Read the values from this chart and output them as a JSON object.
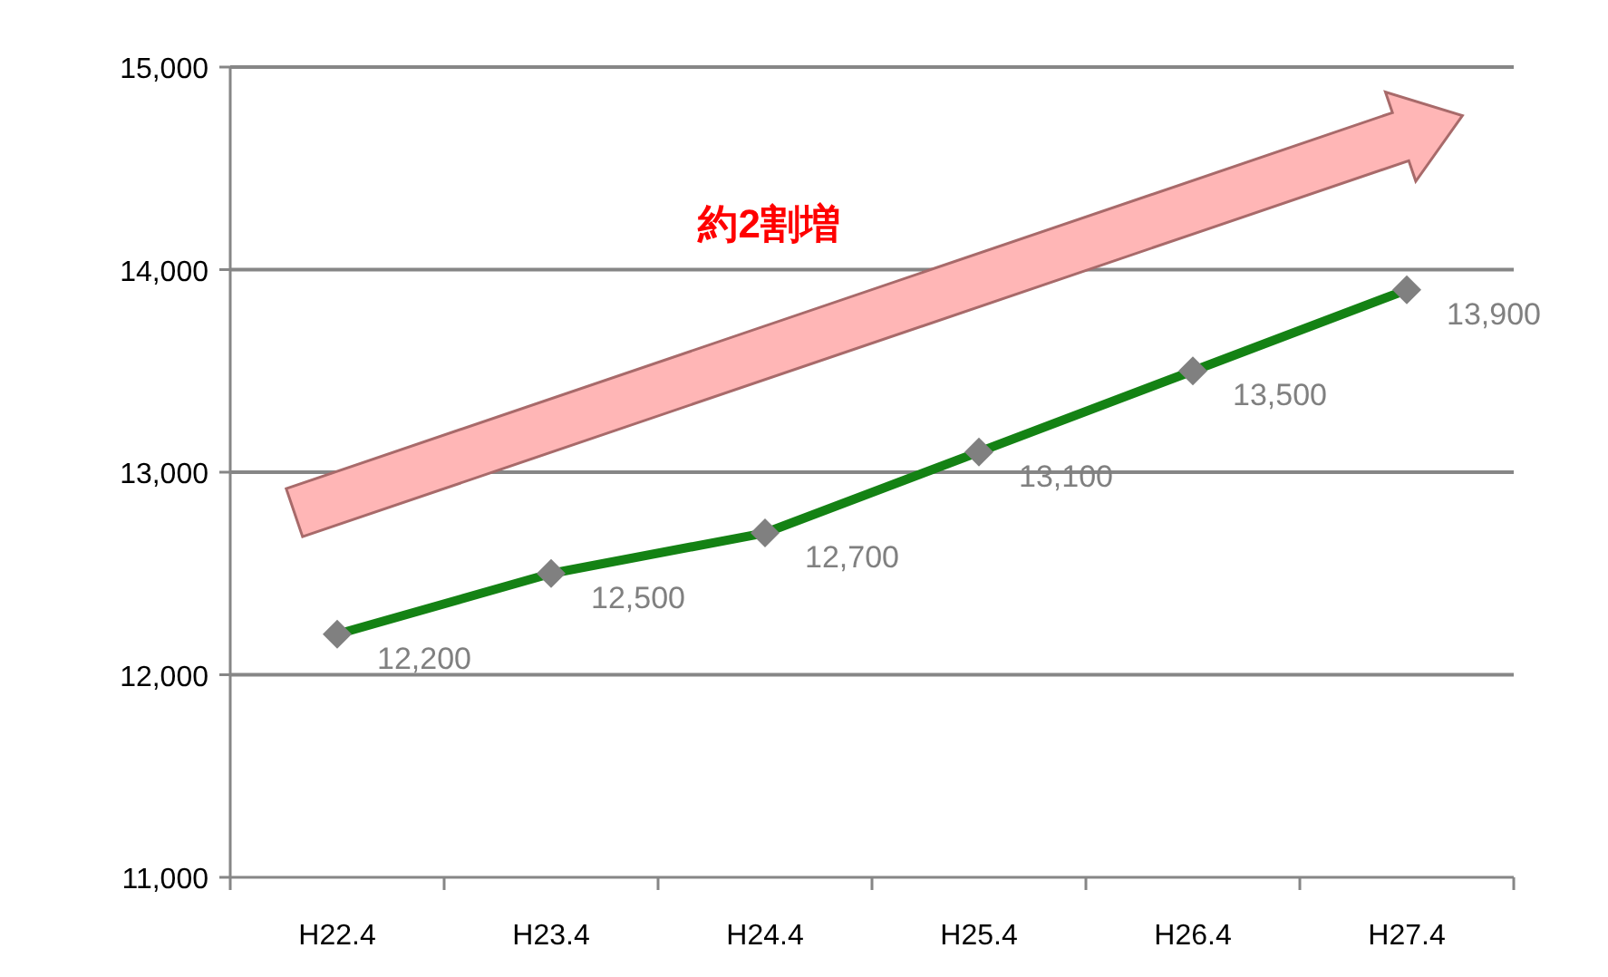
{
  "chart_data": {
    "type": "line",
    "categories": [
      "H22.4",
      "H23.4",
      "H24.4",
      "H25.4",
      "H26.4",
      "H27.4"
    ],
    "series": [
      {
        "color": "#148214",
        "colors": [
          "#808080",
          "#808080",
          "#808080",
          "#808080",
          "#808080",
          "#808080"
        ],
        "values": [
          12200,
          12500,
          12700,
          13100,
          13500,
          13900
        ],
        "value_labels": [
          "12,200",
          "12,500",
          "12,700",
          "13,100",
          "13,500",
          "13,900"
        ]
      }
    ],
    "ylim": [
      11000,
      15000
    ],
    "yticks": [
      {
        "value": 11000,
        "label": "11,000"
      },
      {
        "value": 12000,
        "label": "12,000"
      },
      {
        "value": 13000,
        "label": "13,000"
      },
      {
        "value": 14000,
        "label": "14,000"
      },
      {
        "value": 15000,
        "label": "15,000"
      }
    ],
    "grid": "y",
    "marker": "diamond",
    "line_style": "solid",
    "annotations": [
      "約2割増"
    ]
  }
}
